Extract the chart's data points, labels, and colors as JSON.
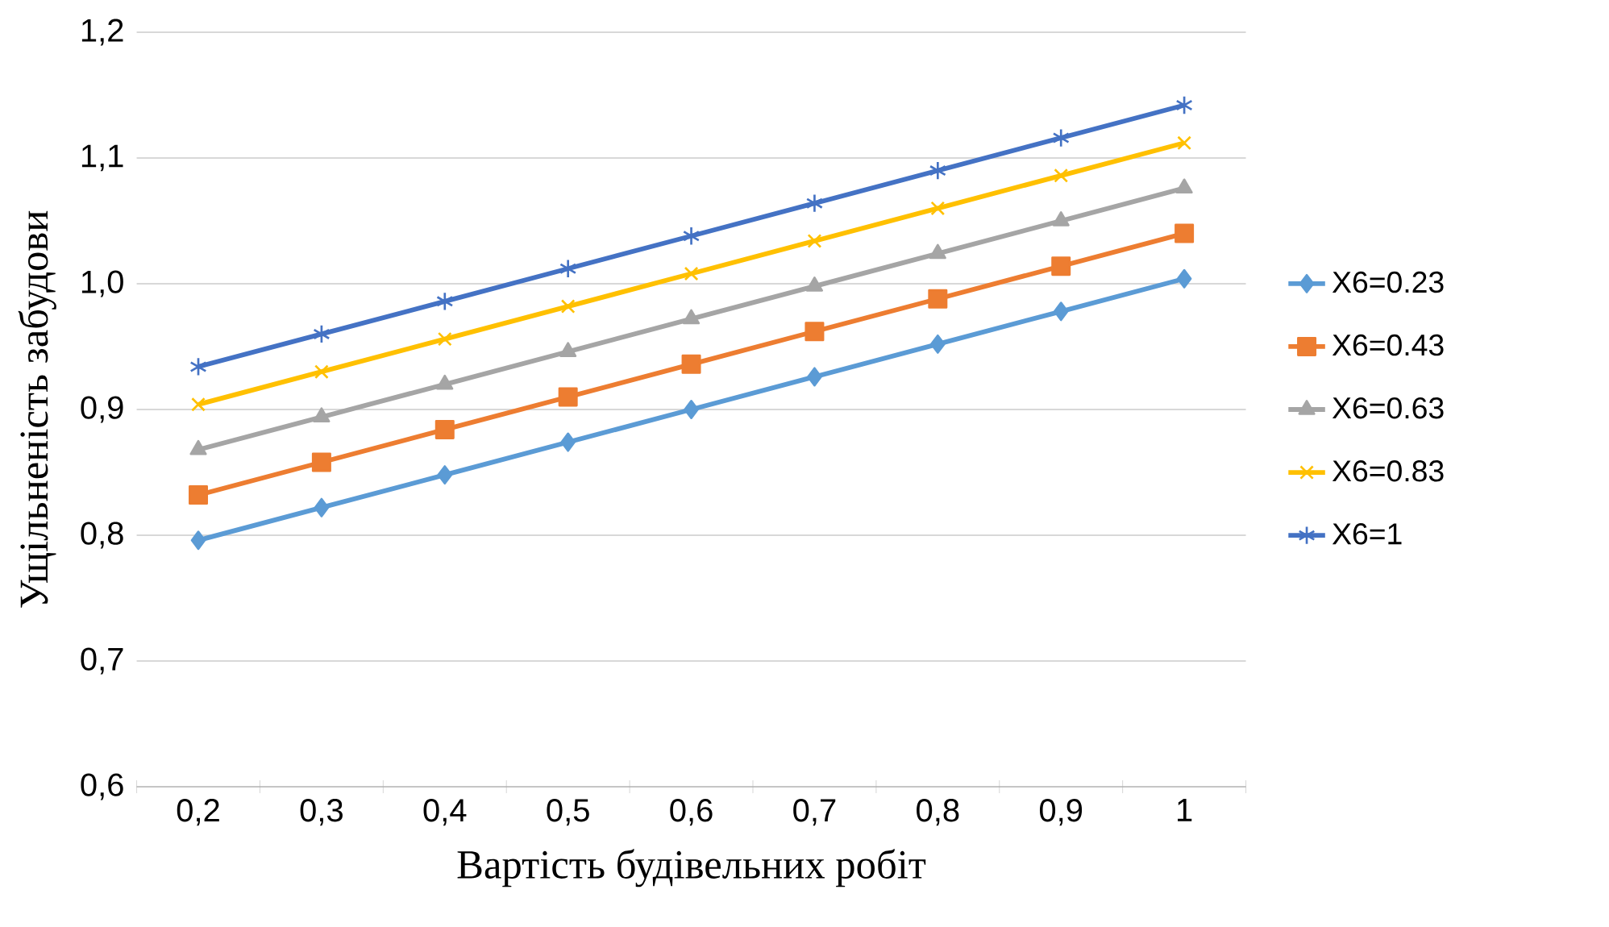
{
  "chart_data": {
    "type": "line",
    "xlabel": "Вартість будівельних робіт",
    "ylabel": "Ущільненість забудови",
    "categories": [
      "0,2",
      "0,3",
      "0,4",
      "0,5",
      "0,6",
      "0,7",
      "0,8",
      "0,9",
      "1"
    ],
    "series": [
      {
        "name": "X6=0.23",
        "color": "#5b9bd5",
        "marker": "diamond",
        "values": [
          0.796,
          0.822,
          0.848,
          0.874,
          0.9,
          0.926,
          0.952,
          0.978,
          1.004
        ]
      },
      {
        "name": "X6=0.43",
        "color": "#ed7d31",
        "marker": "square",
        "values": [
          0.832,
          0.858,
          0.884,
          0.91,
          0.936,
          0.962,
          0.988,
          1.014,
          1.04
        ]
      },
      {
        "name": "X6=0.63",
        "color": "#a5a5a5",
        "marker": "triangle",
        "values": [
          0.868,
          0.894,
          0.92,
          0.946,
          0.972,
          0.998,
          1.024,
          1.05,
          1.076
        ]
      },
      {
        "name": "X6=0.83",
        "color": "#ffc000",
        "marker": "cross",
        "values": [
          0.904,
          0.93,
          0.956,
          0.982,
          1.008,
          1.034,
          1.06,
          1.086,
          1.112
        ]
      },
      {
        "name": "X6=1",
        "color": "#4472c4",
        "marker": "cross",
        "values": [
          0.934,
          0.96,
          0.986,
          1.012,
          1.038,
          1.064,
          1.09,
          1.116,
          1.142
        ]
      }
    ],
    "ylim": [
      0.6,
      1.2
    ],
    "yticks": [
      {
        "value": 0.6,
        "label": "0,6"
      },
      {
        "value": 0.7,
        "label": "0,7"
      },
      {
        "value": 0.8,
        "label": "0,8"
      },
      {
        "value": 0.9,
        "label": "0,9"
      },
      {
        "value": 1.0,
        "label": "1,0"
      },
      {
        "value": 1.1,
        "label": "1,1"
      },
      {
        "value": 1.2,
        "label": "1,2"
      }
    ],
    "grid": "y",
    "legend": "right",
    "line_style": "solid"
  }
}
